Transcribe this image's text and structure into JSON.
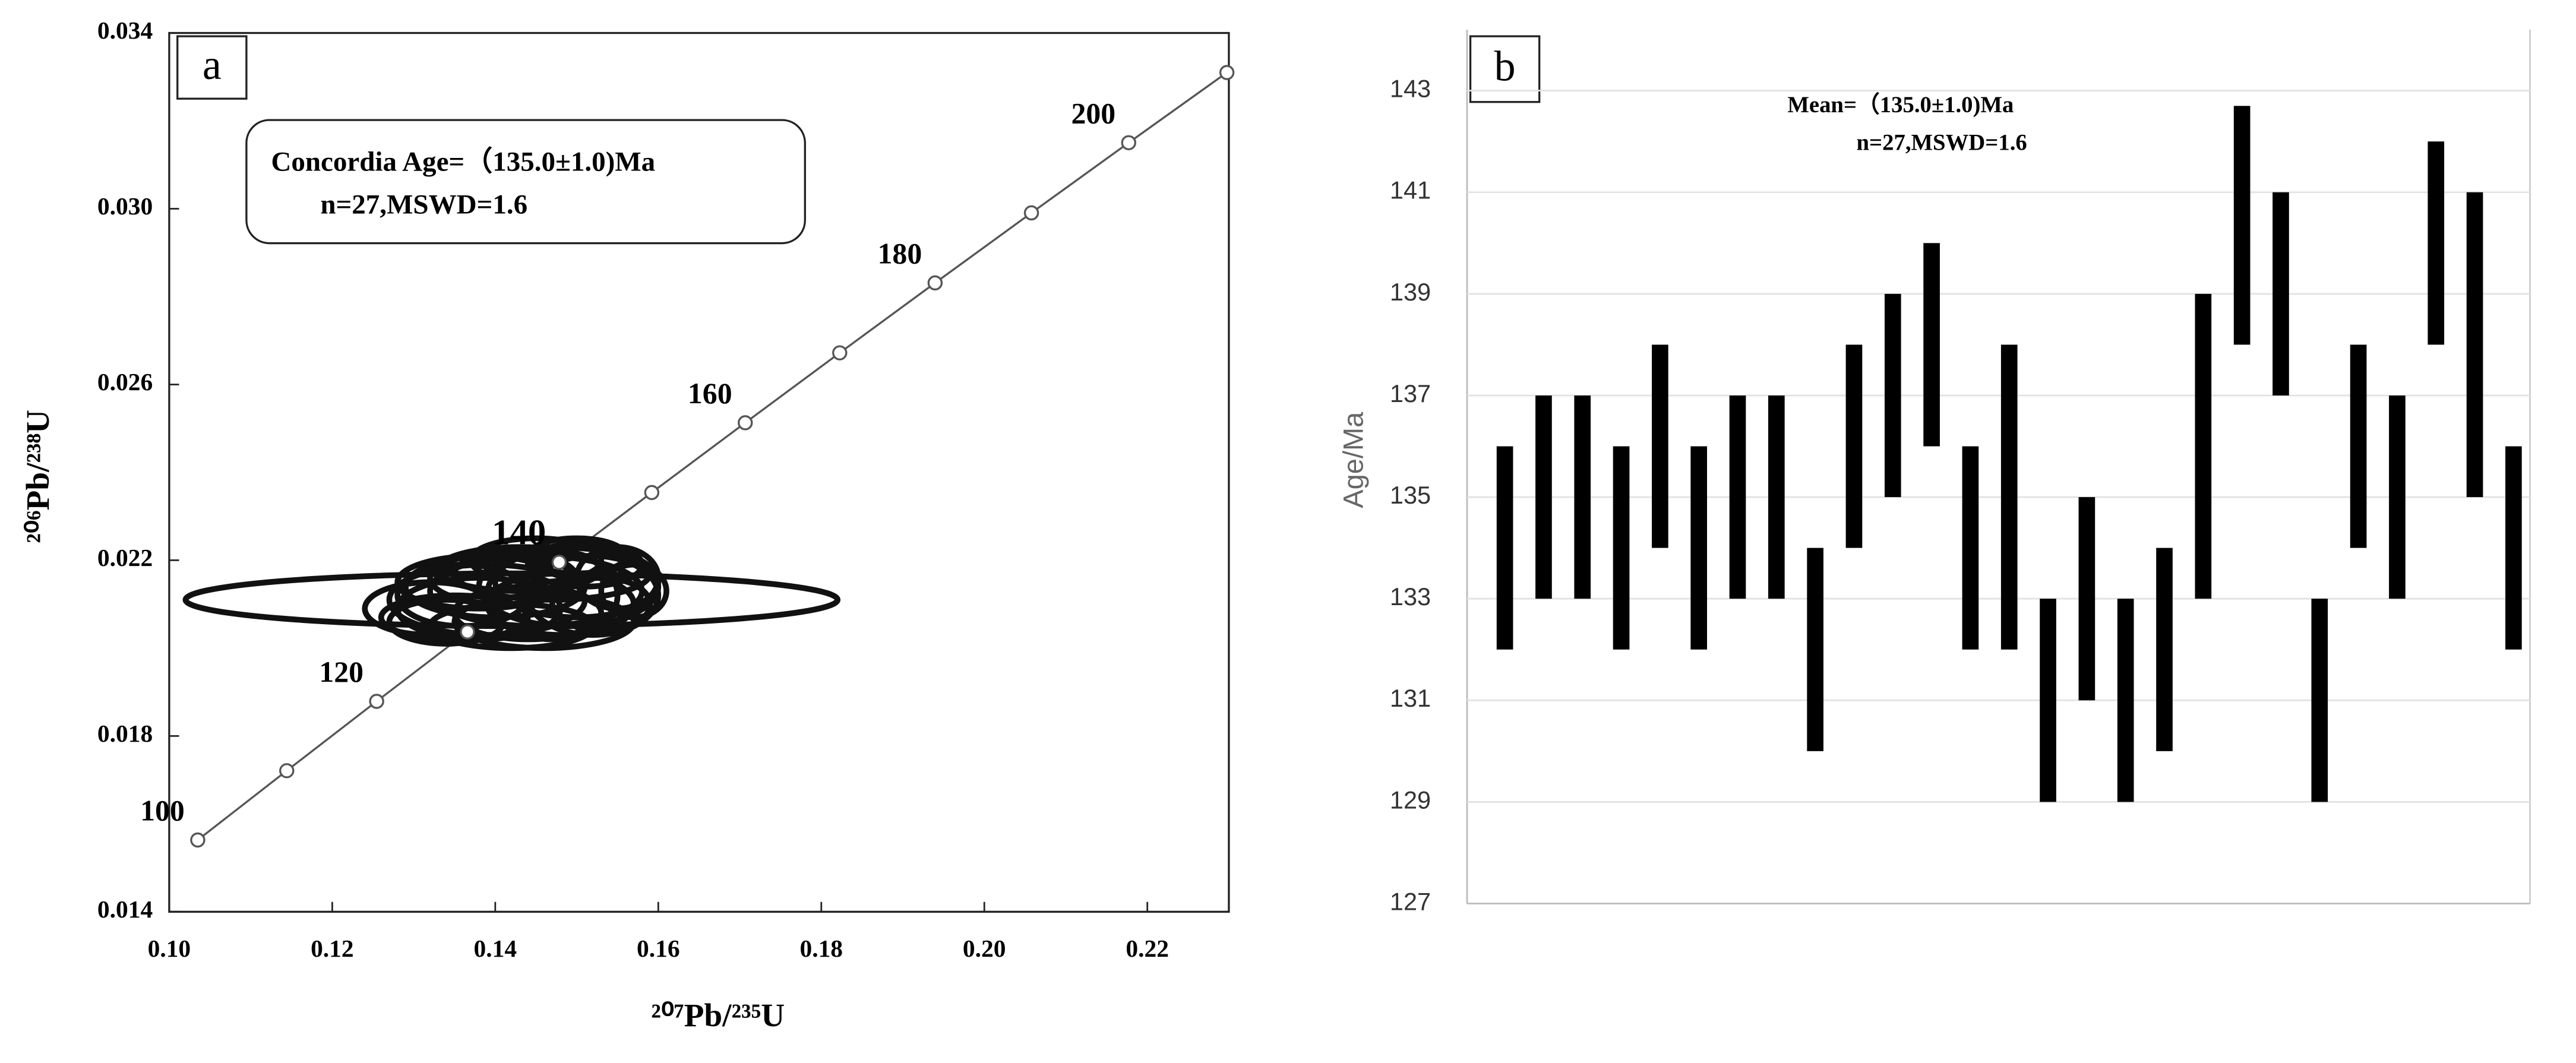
{
  "chart_data": [
    {
      "type": "concordia",
      "panel_label": "a",
      "annotations": [
        "Concordia Age=（135.0±1.0)Ma",
        "n=27,MSWD=1.6"
      ],
      "x_label": "²⁰⁷Pb/²³⁵U",
      "y_label": "²⁰⁶Pb/²³⁸U",
      "xlim": [
        0.1,
        0.23
      ],
      "ylim": [
        0.014,
        0.034
      ],
      "xticks": [
        {
          "value": 0.1,
          "label": "0.10"
        },
        0.12,
        0.14,
        0.16,
        0.18,
        {
          "value": 0.2,
          "label": "0.20"
        },
        0.22
      ],
      "yticks": [
        0.014,
        0.018,
        0.022,
        0.026,
        {
          "value": 0.03,
          "label": "0.030"
        },
        0.034
      ],
      "concordia": {
        "x": [
          0.1035,
          0.11442,
          0.12545,
          0.13659,
          0.14784,
          0.1592,
          0.17067,
          0.18226,
          0.19396,
          0.20578,
          0.21771,
          0.22976
        ],
        "y": [
          0.015633,
          0.01721,
          0.018789,
          0.020369,
          0.021954,
          0.023541,
          0.025129,
          0.02672,
          0.028312,
          0.029906,
          0.031503,
          0.0331
        ],
        "labels": [
          100,
          null,
          120,
          null,
          140,
          null,
          160,
          null,
          180,
          null,
          200,
          null
        ],
        "color": "#555555"
      },
      "ellipses": {
        "color": "#111111",
        "x": [
          0.142,
          0.145,
          0.15,
          0.138,
          0.147,
          0.152,
          0.135,
          0.14,
          0.148,
          0.143,
          0.155,
          0.132,
          0.146,
          0.151,
          0.139,
          0.144,
          0.149,
          0.136,
          0.153,
          0.141,
          0.147,
          0.134,
          0.15,
          0.145,
          0.157,
          0.138,
          0.142
        ],
        "y": [
          0.0211,
          0.0213,
          0.0215,
          0.0209,
          0.0217,
          0.0212,
          0.0207,
          0.0214,
          0.021,
          0.0218,
          0.0216,
          0.0209,
          0.0206,
          0.0219,
          0.0211,
          0.0208,
          0.0214,
          0.0212,
          0.021,
          0.0216,
          0.0212,
          0.0206,
          0.0221,
          0.022,
          0.0213,
          0.0215,
          0.0205
        ],
        "x_err": [
          0.04,
          0.013,
          0.01,
          0.01,
          0.012,
          0.008,
          0.009,
          0.011,
          0.009,
          0.01,
          0.005,
          0.008,
          0.011,
          0.007,
          0.012,
          0.009,
          0.011,
          0.008,
          0.006,
          0.009,
          0.008,
          0.007,
          0.006,
          0.008,
          0.004,
          0.01,
          0.01
        ],
        "y_err": [
          0.0006,
          0.0008,
          0.0008,
          0.0007,
          0.0006,
          0.0009,
          0.0005,
          0.0007,
          0.0007,
          0.0005,
          0.0007,
          0.0006,
          0.0006,
          0.0005,
          0.0008,
          0.0006,
          0.0009,
          0.0007,
          0.0006,
          0.0006,
          0.001,
          0.0005,
          0.0004,
          0.0005,
          0.0006,
          0.0006,
          0.0005
        ]
      }
    },
    {
      "type": "errorbar",
      "panel_label": "b",
      "annotations": [
        "Mean=（135.0±1.0)Ma",
        "n=27,MSWD=1.6"
      ],
      "y_label": "Age/Ma",
      "ylim": [
        127,
        144.2
      ],
      "yticks": [
        127,
        129,
        131,
        133,
        135,
        137,
        139,
        141,
        143
      ],
      "grid": true,
      "color": "#000000",
      "values": [
        134,
        135,
        135,
        134,
        136,
        134,
        135,
        135,
        132,
        136,
        137,
        138,
        134,
        135,
        131,
        133,
        131,
        132,
        136,
        140.35,
        139,
        131,
        136,
        135,
        140,
        138,
        134
      ],
      "errors": [
        2,
        2,
        2,
        2,
        2,
        2,
        2,
        2,
        2,
        2,
        2,
        2,
        2,
        3,
        2,
        2,
        2,
        2,
        3,
        2.35,
        2,
        2,
        2,
        2,
        2,
        3,
        2
      ]
    }
  ]
}
